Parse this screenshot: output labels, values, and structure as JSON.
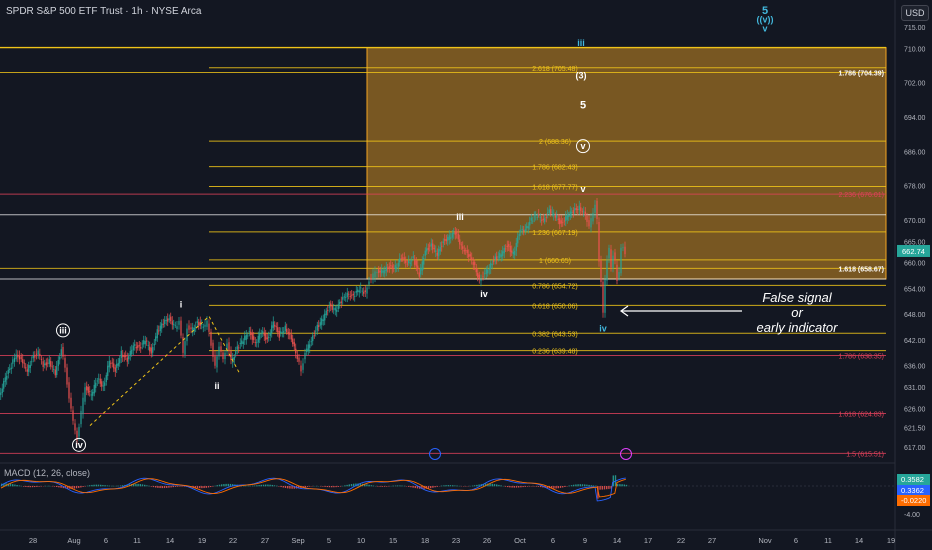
{
  "header": {
    "title": "SPDR S&P 500 ETF Trust · 1h · NYSE Arca",
    "currency": "USD"
  },
  "annotation": {
    "line1": "False signal",
    "line2": "or",
    "line3": "early indicator"
  },
  "colors": {
    "background": "#131722",
    "up_candle": "#26a69a",
    "down_candle": "#ef5350",
    "fib_yellow": "#f0c419",
    "fib_orange": "#ff8c1a",
    "fib_red": "#e0415b",
    "fib_pink": "#e040fb",
    "fib_box": "#f5a623",
    "wave_cyan": "#42b8dd",
    "macd_line": "#2962ff",
    "signal_line": "#ff6d00"
  },
  "chart_data": {
    "type": "candlestick",
    "symbol": "SPDR S&P 500 ETF Trust",
    "interval": "1h",
    "exchange": "NYSE Arca",
    "ylim": [
      612,
      718
    ],
    "last_price": 662.74,
    "x_ticks": [
      "28",
      "Aug",
      "6",
      "11",
      "14",
      "19",
      "22",
      "27",
      "Sep",
      "5",
      "10",
      "15",
      "18",
      "23",
      "26",
      "Oct",
      "6",
      "9",
      "14",
      "17",
      "22",
      "27",
      "Nov",
      "6",
      "11",
      "14",
      "19"
    ],
    "y_ticks": [
      617.0,
      621.5,
      626.0,
      631.0,
      636.0,
      642.0,
      648.0,
      654.0,
      660.0,
      665.0,
      670.0,
      678.0,
      686.0,
      694.0,
      702.0,
      710.0,
      715.0
    ],
    "price_path": [
      [
        0,
        629
      ],
      [
        6,
        633
      ],
      [
        12,
        636
      ],
      [
        17,
        639
      ],
      [
        22,
        637
      ],
      [
        28,
        635
      ],
      [
        34,
        638
      ],
      [
        39,
        639
      ],
      [
        44,
        636
      ],
      [
        50,
        637
      ],
      [
        56,
        634
      ],
      [
        62,
        640
      ],
      [
        66,
        636
      ],
      [
        70,
        628
      ],
      [
        74,
        623
      ],
      [
        78,
        619
      ],
      [
        82,
        625
      ],
      [
        86,
        631
      ],
      [
        92,
        629
      ],
      [
        98,
        633
      ],
      [
        104,
        631
      ],
      [
        110,
        637
      ],
      [
        116,
        635
      ],
      [
        122,
        639
      ],
      [
        128,
        637
      ],
      [
        134,
        641
      ],
      [
        140,
        640
      ],
      [
        146,
        642
      ],
      [
        152,
        639
      ],
      [
        158,
        644
      ],
      [
        164,
        646
      ],
      [
        170,
        647
      ],
      [
        176,
        645
      ],
      [
        180,
        646
      ],
      [
        184,
        639
      ],
      [
        188,
        645
      ],
      [
        192,
        644
      ],
      [
        198,
        646
      ],
      [
        204,
        645
      ],
      [
        208,
        646
      ],
      [
        212,
        641
      ],
      [
        216,
        636
      ],
      [
        220,
        640
      ],
      [
        224,
        638
      ],
      [
        228,
        641
      ],
      [
        232,
        637
      ],
      [
        238,
        640
      ],
      [
        244,
        642
      ],
      [
        250,
        644
      ],
      [
        256,
        641
      ],
      [
        262,
        644
      ],
      [
        268,
        642
      ],
      [
        274,
        646
      ],
      [
        280,
        643
      ],
      [
        286,
        645
      ],
      [
        292,
        642
      ],
      [
        298,
        638
      ],
      [
        302,
        635
      ],
      [
        306,
        639
      ],
      [
        312,
        642
      ],
      [
        318,
        645
      ],
      [
        324,
        647
      ],
      [
        330,
        650
      ],
      [
        336,
        649
      ],
      [
        342,
        651
      ],
      [
        348,
        653
      ],
      [
        354,
        652
      ],
      [
        360,
        654
      ],
      [
        366,
        653
      ],
      [
        370,
        656
      ],
      [
        374,
        657
      ],
      [
        378,
        658
      ],
      [
        384,
        658
      ],
      [
        390,
        659
      ],
      [
        396,
        659
      ],
      [
        402,
        661
      ],
      [
        408,
        660
      ],
      [
        414,
        661
      ],
      [
        420,
        657
      ],
      [
        426,
        663
      ],
      [
        432,
        664
      ],
      [
        438,
        662
      ],
      [
        444,
        665
      ],
      [
        450,
        666
      ],
      [
        456,
        667
      ],
      [
        462,
        664
      ],
      [
        468,
        662
      ],
      [
        474,
        660
      ],
      [
        480,
        656
      ],
      [
        484,
        657
      ],
      [
        490,
        659
      ],
      [
        496,
        661
      ],
      [
        502,
        662
      ],
      [
        508,
        664
      ],
      [
        514,
        662
      ],
      [
        520,
        667
      ],
      [
        526,
        668
      ],
      [
        532,
        670
      ],
      [
        538,
        671
      ],
      [
        544,
        670
      ],
      [
        550,
        672
      ],
      [
        556,
        671
      ],
      [
        562,
        669
      ],
      [
        568,
        671
      ],
      [
        574,
        672
      ],
      [
        580,
        673
      ],
      [
        586,
        671
      ],
      [
        590,
        668
      ],
      [
        594,
        672
      ],
      [
        596,
        674
      ],
      [
        598,
        670
      ],
      [
        600,
        660
      ],
      [
        602,
        656
      ],
      [
        604,
        648
      ],
      [
        606,
        656
      ],
      [
        608,
        661
      ],
      [
        610,
        663
      ],
      [
        612,
        659
      ],
      [
        614,
        662
      ],
      [
        616,
        660
      ],
      [
        618,
        656
      ],
      [
        620,
        658
      ],
      [
        622,
        663
      ],
      [
        624,
        664
      ],
      [
        626,
        662
      ]
    ],
    "fib_levels": [
      {
        "label": "2.618 (705.48)",
        "price": 705.48,
        "color": "#f0c419"
      },
      {
        "label": "2 (688.36)",
        "price": 688.36,
        "color": "#f0c419"
      },
      {
        "label": "1.786 (682.43)",
        "price": 682.43,
        "color": "#f0c419"
      },
      {
        "label": "1.618 (677.77)",
        "price": 677.77,
        "color": "#f0c419"
      },
      {
        "label": "1.236 (667.19)",
        "price": 667.19,
        "color": "#f0c419"
      },
      {
        "label": "1 (660.65)",
        "price": 660.65,
        "color": "#f0c419"
      },
      {
        "label": "0.786 (654.72)",
        "price": 654.72,
        "color": "#f0c419"
      },
      {
        "label": "0.618 (650.06)",
        "price": 650.06,
        "color": "#f0c419"
      },
      {
        "label": "0.382 (643.53)",
        "price": 643.53,
        "color": "#f0c419"
      },
      {
        "label": "0.236 (639.48)",
        "price": 639.48,
        "color": "#f0c419"
      }
    ],
    "right_levels": [
      {
        "label": "1.786 (704.39)",
        "price": 704.39,
        "color": "#f0c419",
        "bright": true
      },
      {
        "label": "1.618 (658.67)",
        "price": 658.67,
        "color": "#f0c419",
        "bright": true
      },
      {
        "label": "2.236 (676.01)",
        "price": 676.01,
        "color": "#e0415b",
        "bright": false
      },
      {
        "label": "1.786 (638.35)",
        "price": 638.35,
        "color": "#e0415b",
        "bright": false
      },
      {
        "label": "1.618 (624.83)",
        "price": 624.83,
        "color": "#e0415b",
        "bright": false
      },
      {
        "label": "1.5 (615.51)",
        "price": 615.51,
        "color": "#e0415b",
        "bright": false
      }
    ],
    "wave_labels": [
      {
        "text": "iii",
        "x": 63,
        "price": 643.5,
        "circled": true,
        "color": "#ffffff"
      },
      {
        "text": "iv",
        "x": 79,
        "price": 616.8,
        "circled": true,
        "color": "#ffffff"
      },
      {
        "text": "i",
        "x": 181,
        "price": 649.5,
        "circled": false,
        "color": "#ffffff"
      },
      {
        "text": "ii",
        "x": 217,
        "price": 630.5,
        "circled": false,
        "color": "#ffffff"
      },
      {
        "text": "iii",
        "x": 460,
        "price": 670,
        "circled": false,
        "color": "#ffffff"
      },
      {
        "text": "iv",
        "x": 484,
        "price": 652,
        "circled": false,
        "color": "#ffffff"
      },
      {
        "text": "v",
        "x": 583,
        "price": 676.5,
        "circled": false,
        "color": "#ffffff"
      },
      {
        "text": "v",
        "x": 583,
        "price": 686.5,
        "circled": true,
        "color": "#ffffff"
      },
      {
        "text": "5",
        "x": 583,
        "price": 696,
        "circled": false,
        "color": "#ffffff"
      },
      {
        "text": "(3)",
        "x": 581,
        "price": 703,
        "circled": false,
        "color": "#ffffff"
      },
      {
        "text": "iii",
        "x": 581,
        "price": 710.6,
        "circled": false,
        "color": "#42b8dd"
      },
      {
        "text": "iv",
        "x": 603,
        "price": 644,
        "circled": false,
        "color": "#42b8dd"
      },
      {
        "text": "5",
        "x": 765,
        "price": 718,
        "circled": false,
        "color": "#42b8dd"
      },
      {
        "text": "((v))",
        "x": 765,
        "price": 716,
        "circled": false,
        "color": "#42b8dd"
      },
      {
        "text": "v",
        "x": 765,
        "price": 714,
        "circled": false,
        "color": "#42b8dd"
      }
    ],
    "macd": {
      "label": "MACD (12, 26, close)",
      "values": [
        0.3582,
        0.3362,
        -0.022
      ],
      "axis_label": "-4.00"
    }
  }
}
